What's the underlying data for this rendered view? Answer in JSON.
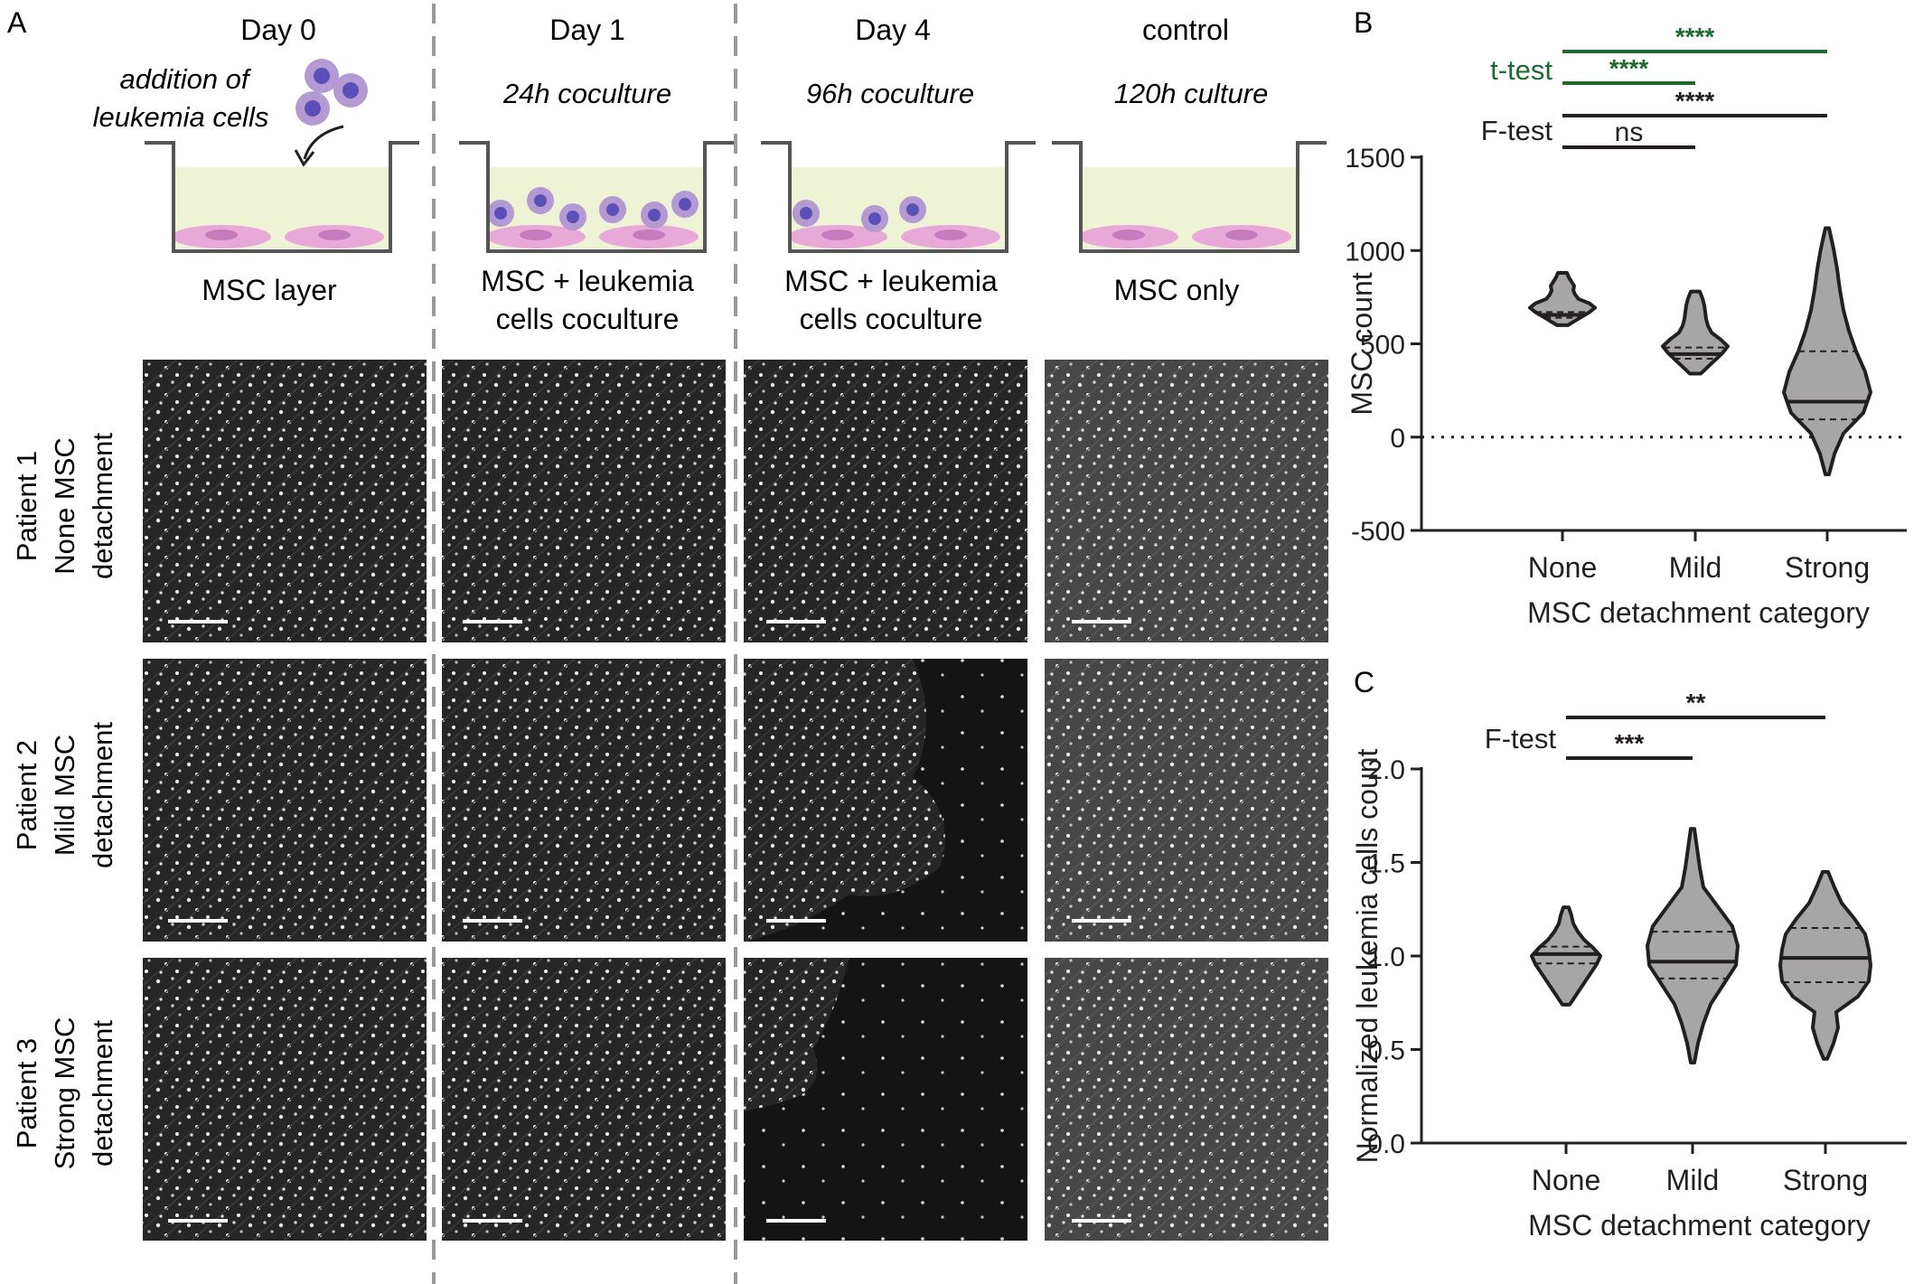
{
  "panel_a": {
    "label": "A",
    "columns": [
      {
        "day": "Day 0",
        "sub": "",
        "caption": [
          "MSC layer"
        ]
      },
      {
        "day": "Day 1",
        "sub": "24h coculture",
        "caption": [
          "MSC + leukemia",
          "cells coculture"
        ]
      },
      {
        "day": "Day 4",
        "sub": "96h coculture",
        "caption": [
          "MSC + leukemia",
          "cells coculture"
        ]
      },
      {
        "day": "control",
        "sub": "120h culture",
        "caption": [
          "MSC only"
        ]
      }
    ],
    "addition_text": [
      "addition of",
      "leukemia cells"
    ],
    "rows": [
      {
        "patient": "Patient 1",
        "line2": "None MSC",
        "line3": "detachment"
      },
      {
        "patient": "Patient 2",
        "line2": "Mild MSC",
        "line3": "detachment"
      },
      {
        "patient": "Patient 3",
        "line2": "Strong MSC",
        "line3": "detachment"
      }
    ],
    "colors": {
      "medium": "#eef3d6",
      "msc": "#e8a9d8",
      "msc_nucleus": "#c77bbf",
      "leukemia": "#b49ad2",
      "leukemia_nucleus": "#5b50b8"
    }
  },
  "chart_data": [
    {
      "type": "violin",
      "panel": "B",
      "categories": [
        "None",
        "Mild",
        "Strong"
      ],
      "xlabel": "MSC detachment category",
      "ylabel": "MSC count",
      "ylim": [
        -500,
        1500
      ],
      "yticks": [
        -500,
        0,
        500,
        1000,
        1500
      ],
      "reference_line": 0,
      "violins": [
        {
          "min": 600,
          "max": 880,
          "median": 655,
          "q1": 640,
          "q3": 670
        },
        {
          "min": 340,
          "max": 780,
          "median": 445,
          "q1": 420,
          "q3": 480
        },
        {
          "min": -200,
          "max": 1120,
          "median": 190,
          "q1": 95,
          "q3": 460
        }
      ],
      "significance": [
        {
          "test": "t-test",
          "pair": [
            "None",
            "Strong"
          ],
          "label": "****",
          "color": "#1e6b30"
        },
        {
          "test": "t-test",
          "pair": [
            "None",
            "Mild"
          ],
          "label": "****",
          "color": "#1e6b30"
        },
        {
          "test": "F-test",
          "pair": [
            "None",
            "Strong"
          ],
          "label": "****",
          "color": "#231f20"
        },
        {
          "test": "F-test",
          "pair": [
            "None",
            "Mild"
          ],
          "label": "ns",
          "color": "#231f20"
        }
      ],
      "test_labels": [
        {
          "text": "t-test",
          "color": "#1e6b30"
        },
        {
          "text": "F-test",
          "color": "#231f20"
        }
      ]
    },
    {
      "type": "violin",
      "panel": "C",
      "categories": [
        "None",
        "Mild",
        "Strong"
      ],
      "xlabel": "MSC detachment category",
      "ylabel": "Normalized leukemia cells count",
      "ylim": [
        0.0,
        2.0
      ],
      "yticks": [
        0.0,
        0.5,
        1.0,
        1.5,
        2.0
      ],
      "violins": [
        {
          "min": 0.74,
          "max": 1.26,
          "median": 1.01,
          "q1": 0.96,
          "q3": 1.05
        },
        {
          "min": 0.43,
          "max": 1.68,
          "median": 0.97,
          "q1": 0.88,
          "q3": 1.13
        },
        {
          "min": 0.45,
          "max": 1.45,
          "median": 0.99,
          "q1": 0.86,
          "q3": 1.15
        }
      ],
      "significance": [
        {
          "test": "F-test",
          "pair": [
            "None",
            "Strong"
          ],
          "label": "**",
          "color": "#231f20"
        },
        {
          "test": "F-test",
          "pair": [
            "None",
            "Mild"
          ],
          "label": "***",
          "color": "#231f20"
        }
      ],
      "test_labels": [
        {
          "text": "F-test",
          "color": "#231f20"
        }
      ]
    }
  ]
}
